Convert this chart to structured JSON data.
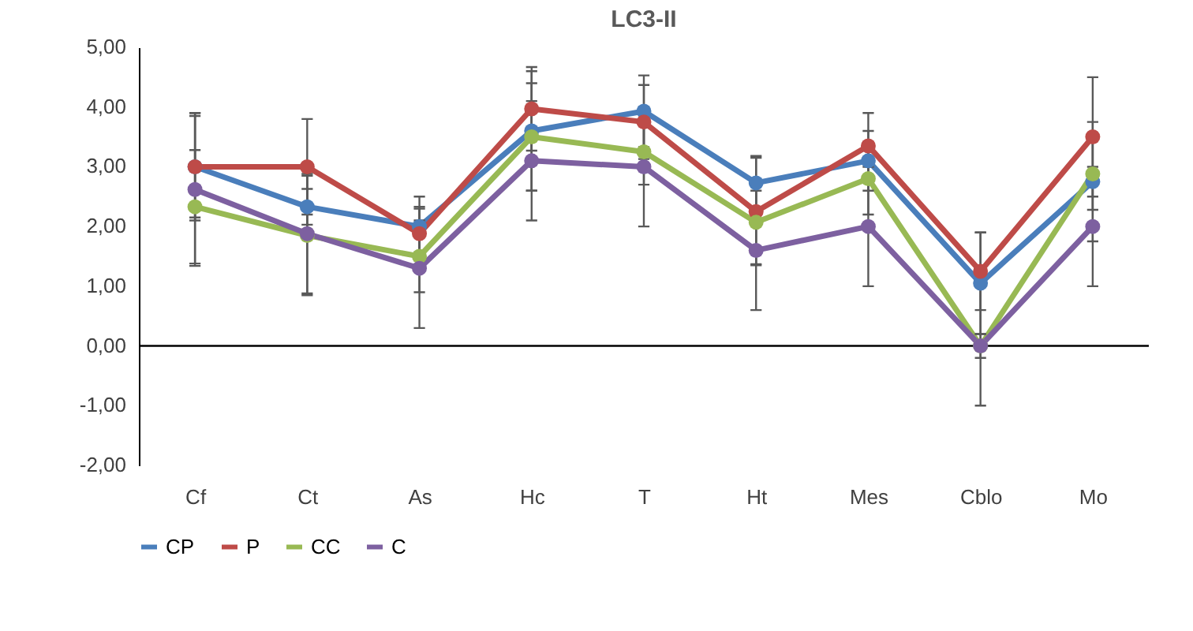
{
  "chart_data": {
    "type": "line",
    "title": "LC3-II",
    "categories": [
      "Cf",
      "Ct",
      "As",
      "Hc",
      "T",
      "Ht",
      "Mes",
      "Cblo",
      "Mo"
    ],
    "series": [
      {
        "name": "CP",
        "color": "#4a7ebb",
        "values": [
          3.0,
          2.33,
          2.0,
          3.6,
          3.93,
          2.73,
          3.1,
          1.05,
          2.75
        ],
        "errors": [
          0.85,
          0.3,
          0.5,
          1.0,
          0.6,
          0.45,
          0.5,
          0.85,
          1.0
        ]
      },
      {
        "name": "P",
        "color": "#be4b48",
        "values": [
          3.0,
          3.0,
          1.88,
          3.97,
          3.75,
          2.25,
          3.35,
          1.25,
          3.5
        ],
        "errors": [
          0.9,
          0.8,
          0.45,
          0.7,
          0.62,
          0.9,
          0.55,
          0.65,
          1.0
        ]
      },
      {
        "name": "CC",
        "color": "#98b954",
        "values": [
          2.33,
          1.85,
          1.5,
          3.5,
          3.25,
          2.07,
          2.8,
          0.0,
          2.88
        ],
        "errors": [
          0.95,
          1.0,
          0.6,
          0.9,
          0.55,
          0.7,
          0.6,
          0.2,
          0.6
        ]
      },
      {
        "name": "C",
        "color": "#7d60a0",
        "values": [
          2.62,
          1.88,
          1.3,
          3.1,
          3.0,
          1.6,
          2.0,
          0.0,
          2.0
        ],
        "errors": [
          1.28,
          1.0,
          1.0,
          1.0,
          1.0,
          1.0,
          1.0,
          1.0,
          1.0
        ]
      }
    ],
    "ylim": [
      -2,
      5
    ],
    "yticks": [
      {
        "value": -2,
        "label": "-2,00"
      },
      {
        "value": -1,
        "label": "-1,00"
      },
      {
        "value": 0,
        "label": "0,00"
      },
      {
        "value": 1,
        "label": "1,00"
      },
      {
        "value": 2,
        "label": "2,00"
      },
      {
        "value": 3,
        "label": "3,00"
      },
      {
        "value": 4,
        "label": "4,00"
      },
      {
        "value": 5,
        "label": "5,00"
      }
    ],
    "ref_lines": [
      {
        "axis": "y",
        "value": 0,
        "color": "#000000"
      }
    ],
    "grid": false,
    "legend": "bottom",
    "marker": "circle",
    "line_style": "solid"
  }
}
